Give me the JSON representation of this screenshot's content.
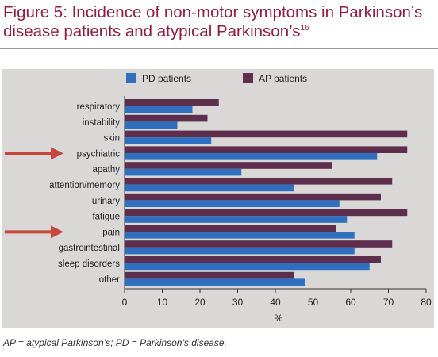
{
  "figure": {
    "title": "Figure 5: Incidence of non-motor symptoms in Parkinson’s disease patients and atypical Parkinson’s",
    "title_main": "Figure 5: Incidence of non-motor symptoms in Parkinson’s disease patients and atypical Parkinson’s",
    "title_ref": "16",
    "footnote": "AP = atypical Parkinson’s; PD = Parkinson’s disease."
  },
  "colors": {
    "title": "#8f1f3f",
    "panel": "#dad8d6",
    "pd": "#2e6fc0",
    "ap": "#5e2f4c",
    "arrow": "#c8453e"
  },
  "chart_data": {
    "type": "bar",
    "orientation": "horizontal",
    "categories": [
      "respiratory",
      "instability",
      "skin",
      "psychiatric",
      "apathy",
      "attention/memory",
      "urinary",
      "fatigue",
      "pain",
      "gastrointestinal",
      "sleep disorders",
      "other"
    ],
    "series": [
      {
        "name": "PD patients",
        "values": [
          18,
          14,
          23,
          67,
          31,
          45,
          57,
          59,
          61,
          61,
          65,
          48
        ]
      },
      {
        "name": "AP patients",
        "values": [
          25,
          22,
          75,
          75,
          55,
          71,
          68,
          75,
          56,
          71,
          68,
          45
        ]
      }
    ],
    "xlabel": "%",
    "xlim": [
      0,
      80
    ],
    "xticks": [
      0,
      10,
      20,
      30,
      40,
      50,
      60,
      70,
      80
    ],
    "highlighted_categories": [
      "psychiatric",
      "pain"
    ],
    "legend_position": "top",
    "grid": false
  }
}
